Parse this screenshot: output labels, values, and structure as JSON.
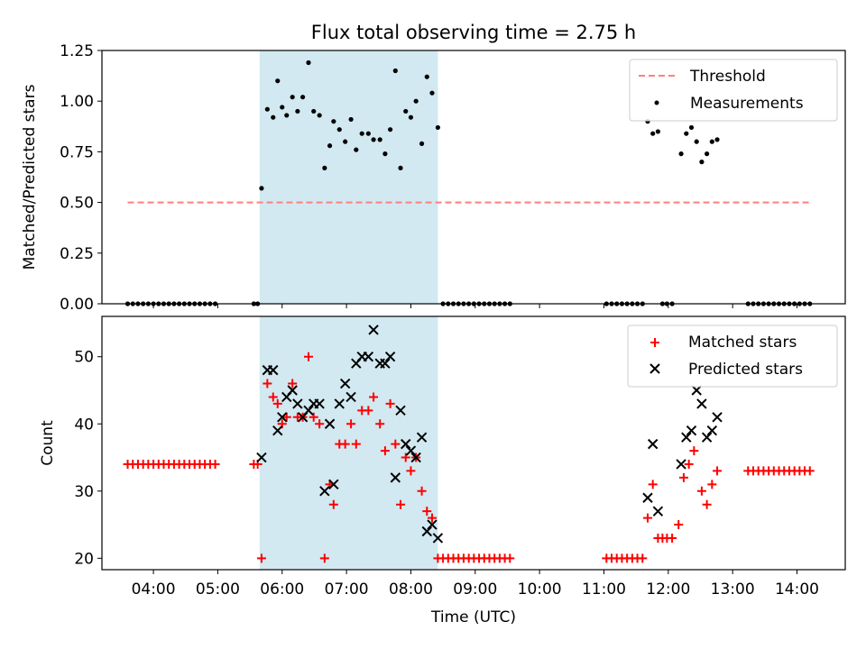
{
  "figure": {
    "title": "Flux total observing time = 2.75 h",
    "xlabel": "Time (UTC)",
    "x_ticks": [
      "04:00",
      "05:00",
      "06:00",
      "07:00",
      "08:00",
      "09:00",
      "10:00",
      "11:00",
      "12:00",
      "13:00",
      "14:00"
    ]
  },
  "chart_data": [
    {
      "type": "scatter",
      "ylabel": "Matched/Predicted stars",
      "xlim": [
        3.2,
        14.75
      ],
      "ylim": [
        0,
        1.25
      ],
      "y_ticks": [
        "0.00",
        "0.25",
        "0.50",
        "0.75",
        "1.00",
        "1.25"
      ],
      "shaded_region": [
        5.65,
        8.42
      ],
      "shade_color": "#d2e9f1",
      "legend_position": "upper right",
      "series": [
        {
          "name": "Threshold",
          "type": "dashed-line",
          "color": "#ff7f7f",
          "points": [
            [
              3.6,
              0.5
            ],
            [
              14.2,
              0.5
            ]
          ]
        },
        {
          "name": "Measurements",
          "type": "dot",
          "color": "#000000",
          "points": [
            [
              3.6,
              0
            ],
            [
              3.68,
              0
            ],
            [
              3.76,
              0
            ],
            [
              3.84,
              0
            ],
            [
              3.92,
              0
            ],
            [
              4.0,
              0
            ],
            [
              4.08,
              0
            ],
            [
              4.16,
              0
            ],
            [
              4.24,
              0
            ],
            [
              4.32,
              0
            ],
            [
              4.4,
              0
            ],
            [
              4.48,
              0
            ],
            [
              4.56,
              0
            ],
            [
              4.64,
              0
            ],
            [
              4.72,
              0
            ],
            [
              4.8,
              0
            ],
            [
              4.88,
              0
            ],
            [
              4.96,
              0
            ],
            [
              5.56,
              0
            ],
            [
              5.62,
              0
            ],
            [
              5.68,
              0.57
            ],
            [
              5.77,
              0.96
            ],
            [
              5.86,
              0.92
            ],
            [
              5.93,
              1.1
            ],
            [
              6.0,
              0.97
            ],
            [
              6.07,
              0.93
            ],
            [
              6.16,
              1.02
            ],
            [
              6.24,
              0.95
            ],
            [
              6.32,
              1.02
            ],
            [
              6.41,
              1.19
            ],
            [
              6.49,
              0.95
            ],
            [
              6.58,
              0.93
            ],
            [
              6.66,
              0.67
            ],
            [
              6.74,
              0.78
            ],
            [
              6.8,
              0.9
            ],
            [
              6.89,
              0.86
            ],
            [
              6.98,
              0.8
            ],
            [
              7.07,
              0.91
            ],
            [
              7.15,
              0.76
            ],
            [
              7.24,
              0.84
            ],
            [
              7.34,
              0.84
            ],
            [
              7.42,
              0.81
            ],
            [
              7.52,
              0.81
            ],
            [
              7.6,
              0.74
            ],
            [
              7.68,
              0.86
            ],
            [
              7.76,
              1.15
            ],
            [
              7.84,
              0.67
            ],
            [
              7.92,
              0.95
            ],
            [
              8.0,
              0.92
            ],
            [
              8.08,
              1.0
            ],
            [
              8.17,
              0.79
            ],
            [
              8.25,
              1.12
            ],
            [
              8.33,
              1.04
            ],
            [
              8.42,
              0.87
            ],
            [
              8.5,
              0
            ],
            [
              8.58,
              0
            ],
            [
              8.66,
              0
            ],
            [
              8.74,
              0
            ],
            [
              8.82,
              0
            ],
            [
              8.9,
              0
            ],
            [
              8.98,
              0
            ],
            [
              9.06,
              0
            ],
            [
              9.14,
              0
            ],
            [
              9.22,
              0
            ],
            [
              9.3,
              0
            ],
            [
              9.38,
              0
            ],
            [
              9.46,
              0
            ],
            [
              9.54,
              0
            ],
            [
              11.04,
              0
            ],
            [
              11.12,
              0
            ],
            [
              11.2,
              0
            ],
            [
              11.28,
              0
            ],
            [
              11.36,
              0
            ],
            [
              11.44,
              0
            ],
            [
              11.52,
              0
            ],
            [
              11.6,
              0
            ],
            [
              11.68,
              0.9
            ],
            [
              11.76,
              0.84
            ],
            [
              11.84,
              0.85
            ],
            [
              11.91,
              0
            ],
            [
              11.98,
              0
            ],
            [
              12.06,
              0
            ],
            [
              12.2,
              0.74
            ],
            [
              12.28,
              0.84
            ],
            [
              12.36,
              0.87
            ],
            [
              12.44,
              0.8
            ],
            [
              12.52,
              0.7
            ],
            [
              12.6,
              0.74
            ],
            [
              12.68,
              0.8
            ],
            [
              12.76,
              0.81
            ],
            [
              13.24,
              0
            ],
            [
              13.32,
              0
            ],
            [
              13.4,
              0
            ],
            [
              13.48,
              0
            ],
            [
              13.56,
              0
            ],
            [
              13.64,
              0
            ],
            [
              13.72,
              0
            ],
            [
              13.8,
              0
            ],
            [
              13.88,
              0
            ],
            [
              13.96,
              0
            ],
            [
              14.04,
              0
            ],
            [
              14.12,
              0
            ],
            [
              14.2,
              0
            ]
          ]
        }
      ]
    },
    {
      "type": "scatter",
      "ylabel": "Count",
      "xlim": [
        3.2,
        14.75
      ],
      "ylim": [
        18.3,
        56.0
      ],
      "y_ticks": [
        "20",
        "30",
        "40",
        "50"
      ],
      "shaded_region": [
        5.65,
        8.42
      ],
      "shade_color": "#d2e9f1",
      "legend_position": "upper right",
      "series": [
        {
          "name": "Matched stars",
          "marker": "plus",
          "color": "#ff0000",
          "points": [
            [
              3.6,
              34
            ],
            [
              3.68,
              34
            ],
            [
              3.76,
              34
            ],
            [
              3.84,
              34
            ],
            [
              3.92,
              34
            ],
            [
              4.0,
              34
            ],
            [
              4.08,
              34
            ],
            [
              4.16,
              34
            ],
            [
              4.24,
              34
            ],
            [
              4.32,
              34
            ],
            [
              4.4,
              34
            ],
            [
              4.48,
              34
            ],
            [
              4.56,
              34
            ],
            [
              4.64,
              34
            ],
            [
              4.72,
              34
            ],
            [
              4.8,
              34
            ],
            [
              4.88,
              34
            ],
            [
              4.96,
              34
            ],
            [
              5.56,
              34
            ],
            [
              5.62,
              34
            ],
            [
              5.68,
              20
            ],
            [
              5.77,
              46
            ],
            [
              5.86,
              44
            ],
            [
              5.93,
              43
            ],
            [
              6.0,
              40
            ],
            [
              6.07,
              41
            ],
            [
              6.16,
              46
            ],
            [
              6.24,
              41
            ],
            [
              6.32,
              41
            ],
            [
              6.41,
              50
            ],
            [
              6.49,
              41
            ],
            [
              6.58,
              40
            ],
            [
              6.66,
              20
            ],
            [
              6.74,
              31
            ],
            [
              6.8,
              28
            ],
            [
              6.89,
              37
            ],
            [
              6.98,
              37
            ],
            [
              7.07,
              40
            ],
            [
              7.15,
              37
            ],
            [
              7.24,
              42
            ],
            [
              7.34,
              42
            ],
            [
              7.42,
              44
            ],
            [
              7.52,
              40
            ],
            [
              7.6,
              36
            ],
            [
              7.68,
              43
            ],
            [
              7.76,
              37
            ],
            [
              7.84,
              28
            ],
            [
              7.92,
              35
            ],
            [
              8.0,
              33
            ],
            [
              8.08,
              35
            ],
            [
              8.17,
              30
            ],
            [
              8.25,
              27
            ],
            [
              8.33,
              26
            ],
            [
              8.42,
              20
            ],
            [
              8.5,
              20
            ],
            [
              8.58,
              20
            ],
            [
              8.66,
              20
            ],
            [
              8.74,
              20
            ],
            [
              8.82,
              20
            ],
            [
              8.9,
              20
            ],
            [
              8.98,
              20
            ],
            [
              9.06,
              20
            ],
            [
              9.14,
              20
            ],
            [
              9.22,
              20
            ],
            [
              9.3,
              20
            ],
            [
              9.38,
              20
            ],
            [
              9.46,
              20
            ],
            [
              9.54,
              20
            ],
            [
              11.04,
              20
            ],
            [
              11.12,
              20
            ],
            [
              11.2,
              20
            ],
            [
              11.28,
              20
            ],
            [
              11.36,
              20
            ],
            [
              11.44,
              20
            ],
            [
              11.52,
              20
            ],
            [
              11.6,
              20
            ],
            [
              11.68,
              26
            ],
            [
              11.76,
              31
            ],
            [
              11.84,
              23
            ],
            [
              11.91,
              23
            ],
            [
              11.98,
              23
            ],
            [
              12.06,
              23
            ],
            [
              12.16,
              25
            ],
            [
              12.24,
              32
            ],
            [
              12.32,
              34
            ],
            [
              12.4,
              36
            ],
            [
              12.52,
              30
            ],
            [
              12.6,
              28
            ],
            [
              12.68,
              31
            ],
            [
              12.76,
              33
            ],
            [
              13.24,
              33
            ],
            [
              13.32,
              33
            ],
            [
              13.4,
              33
            ],
            [
              13.48,
              33
            ],
            [
              13.56,
              33
            ],
            [
              13.64,
              33
            ],
            [
              13.72,
              33
            ],
            [
              13.8,
              33
            ],
            [
              13.88,
              33
            ],
            [
              13.96,
              33
            ],
            [
              14.04,
              33
            ],
            [
              14.12,
              33
            ],
            [
              14.2,
              33
            ]
          ]
        },
        {
          "name": "Predicted stars",
          "marker": "x",
          "color": "#000000",
          "points": [
            [
              5.68,
              35
            ],
            [
              5.77,
              48
            ],
            [
              5.86,
              48
            ],
            [
              5.93,
              39
            ],
            [
              6.0,
              41
            ],
            [
              6.07,
              44
            ],
            [
              6.16,
              45
            ],
            [
              6.24,
              43
            ],
            [
              6.32,
              41
            ],
            [
              6.41,
              42
            ],
            [
              6.49,
              43
            ],
            [
              6.58,
              43
            ],
            [
              6.66,
              30
            ],
            [
              6.74,
              40
            ],
            [
              6.8,
              31
            ],
            [
              6.89,
              43
            ],
            [
              6.98,
              46
            ],
            [
              7.07,
              44
            ],
            [
              7.15,
              49
            ],
            [
              7.24,
              50
            ],
            [
              7.34,
              50
            ],
            [
              7.42,
              54
            ],
            [
              7.52,
              49
            ],
            [
              7.6,
              49
            ],
            [
              7.68,
              50
            ],
            [
              7.76,
              32
            ],
            [
              7.84,
              42
            ],
            [
              7.92,
              37
            ],
            [
              8.0,
              36
            ],
            [
              8.08,
              35
            ],
            [
              8.17,
              38
            ],
            [
              8.25,
              24
            ],
            [
              8.33,
              25
            ],
            [
              8.42,
              23
            ],
            [
              11.68,
              29
            ],
            [
              11.76,
              37
            ],
            [
              11.84,
              27
            ],
            [
              12.2,
              34
            ],
            [
              12.28,
              38
            ],
            [
              12.36,
              39
            ],
            [
              12.44,
              45
            ],
            [
              12.52,
              43
            ],
            [
              12.6,
              38
            ],
            [
              12.68,
              39
            ],
            [
              12.76,
              41
            ]
          ]
        }
      ]
    }
  ]
}
